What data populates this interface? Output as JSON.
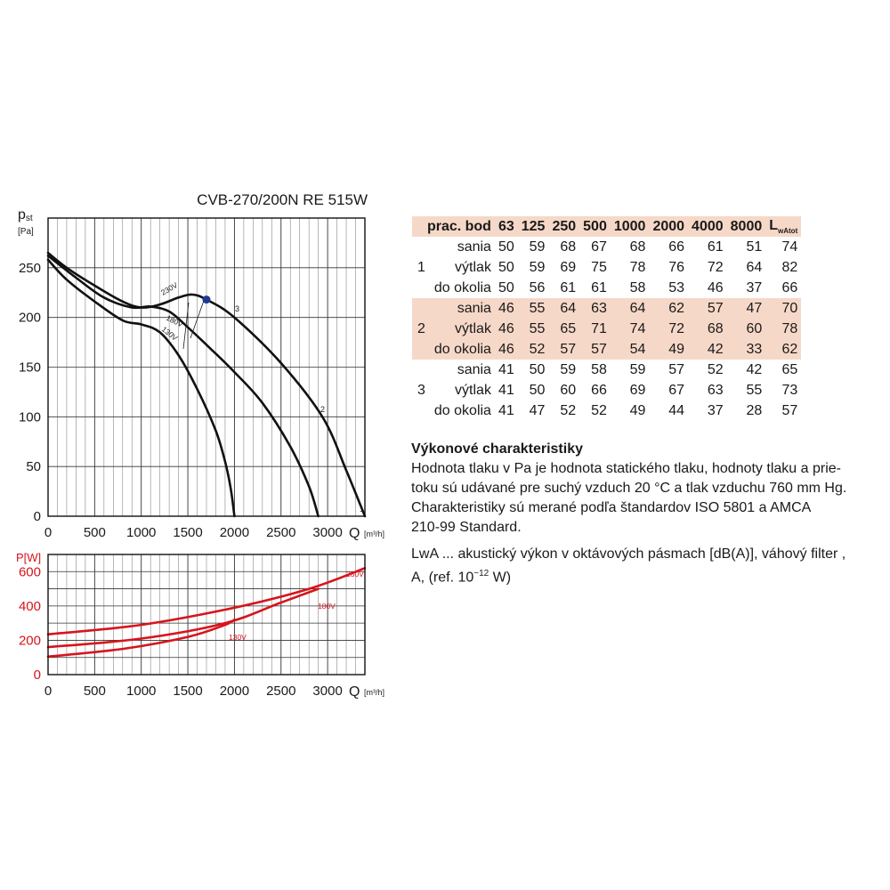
{
  "chart_data": [
    {
      "type": "line",
      "title": "CVB-270/200N RE 515W",
      "ylabel_main": "p",
      "ylabel_sub": "st",
      "yunit": "[Pa]",
      "xlabel": "Q",
      "xunit": "[m³/h]",
      "xlim": [
        0,
        3400
      ],
      "ylim": [
        0,
        300
      ],
      "xticks": [
        0,
        500,
        1000,
        1500,
        2000,
        2500,
        3000
      ],
      "yticks": [
        0,
        50,
        100,
        150,
        200,
        250
      ],
      "grid": true,
      "series": [
        {
          "name": "230V",
          "x": [
            0,
            200,
            500,
            800,
            1000,
            1200,
            1400,
            1550,
            1700,
            2000,
            2500,
            2950,
            3200,
            3400
          ],
          "y": [
            265,
            250,
            232,
            216,
            210,
            213,
            220,
            223,
            218,
            200,
            154,
            99,
            46,
            0
          ]
        },
        {
          "name": "180V",
          "x": [
            0,
            300,
            600,
            900,
            1100,
            1300,
            1500,
            1750,
            2000,
            2300,
            2600,
            2800,
            2900
          ],
          "y": [
            262,
            240,
            220,
            210,
            211,
            206,
            190,
            168,
            145,
            114,
            70,
            30,
            0
          ]
        },
        {
          "name": "130V",
          "x": [
            0,
            200,
            500,
            800,
            1000,
            1200,
            1400,
            1600,
            1800,
            1900,
            1960,
            2000
          ],
          "y": [
            258,
            238,
            216,
            197,
            193,
            185,
            162,
            128,
            86,
            55,
            28,
            0
          ]
        }
      ],
      "curve_labels": [
        "230V",
        "180V",
        "130V"
      ],
      "operating_points": [
        "1",
        "2",
        "3"
      ],
      "marker": {
        "x": 1700,
        "y": 218
      }
    },
    {
      "type": "line",
      "ylabel": "P[W]",
      "xlabel": "Q",
      "xunit": "[m³/h]",
      "xlim": [
        0,
        3400
      ],
      "ylim": [
        0,
        700
      ],
      "xticks": [
        0,
        500,
        1000,
        1500,
        2000,
        2500,
        3000
      ],
      "yticks": [
        0,
        200,
        400,
        600
      ],
      "grid": true,
      "series": [
        {
          "name": "230V",
          "x": [
            0,
            1000,
            2000,
            2800,
            3400
          ],
          "y": [
            235,
            290,
            390,
            500,
            620
          ]
        },
        {
          "name": "180V",
          "x": [
            0,
            1000,
            1900,
            2500,
            2900
          ],
          "y": [
            160,
            210,
            300,
            420,
            500
          ]
        },
        {
          "name": "130V",
          "x": [
            0,
            800,
            1500,
            1900,
            2000
          ],
          "y": [
            105,
            150,
            220,
            290,
            320
          ]
        }
      ]
    },
    {
      "type": "table",
      "header": [
        "prac. bod",
        "63",
        "125",
        "250",
        "500",
        "1000",
        "2000",
        "4000",
        "8000",
        "L"
      ],
      "header_sub": "wAtot",
      "groups": [
        {
          "id": "1",
          "rows": [
            {
              "pos": "sania",
              "values": [
                "50",
                "59",
                "68",
                "67",
                "68",
                "66",
                "61",
                "51",
                "74"
              ]
            },
            {
              "pos": "výtlak",
              "values": [
                "50",
                "59",
                "69",
                "75",
                "78",
                "76",
                "72",
                "64",
                "82"
              ]
            },
            {
              "pos": "do okolia",
              "values": [
                "50",
                "56",
                "61",
                "61",
                "58",
                "53",
                "46",
                "37",
                "66"
              ]
            }
          ]
        },
        {
          "id": "2",
          "rows": [
            {
              "pos": "sania",
              "values": [
                "46",
                "55",
                "64",
                "63",
                "64",
                "62",
                "57",
                "47",
                "70"
              ]
            },
            {
              "pos": "výtlak",
              "values": [
                "46",
                "55",
                "65",
                "71",
                "74",
                "72",
                "68",
                "60",
                "78"
              ]
            },
            {
              "pos": "do okolia",
              "values": [
                "46",
                "52",
                "57",
                "57",
                "54",
                "49",
                "42",
                "33",
                "62"
              ]
            }
          ]
        },
        {
          "id": "3",
          "rows": [
            {
              "pos": "sania",
              "values": [
                "41",
                "50",
                "59",
                "58",
                "59",
                "57",
                "52",
                "42",
                "65"
              ]
            },
            {
              "pos": "výtlak",
              "values": [
                "41",
                "50",
                "60",
                "66",
                "69",
                "67",
                "63",
                "55",
                "73"
              ]
            },
            {
              "pos": "do okolia",
              "values": [
                "41",
                "47",
                "52",
                "52",
                "49",
                "44",
                "37",
                "28",
                "57"
              ]
            }
          ]
        }
      ]
    }
  ],
  "description": {
    "heading": "Výkonové charakteristiky",
    "line1": "Hodnota tlaku v Pa je hodnota statického tlaku, hodnoty tlaku a prie-",
    "line2": "toku sú udávané pre suchý vzduch 20 °C a tlak vzduchu 760 mm Hg.",
    "line3": "Charakteristiky sú merané podľa štandardov ISO 5801 a AMCA",
    "line4": "210-99 Standard.",
    "lwa_line1": "LwA ... akustický výkon v oktávových pásmach [dB(A)], váhový filter ,",
    "lwa_line2_pre": "A, (ref. 10",
    "lwa_line2_exp": "−12",
    "lwa_line2_post": " W)"
  },
  "colors": {
    "pressure_curves": "#111111",
    "power_curves": "#d7141c",
    "marker": "#1f3a93",
    "table_shade": "#f6d8c8"
  }
}
